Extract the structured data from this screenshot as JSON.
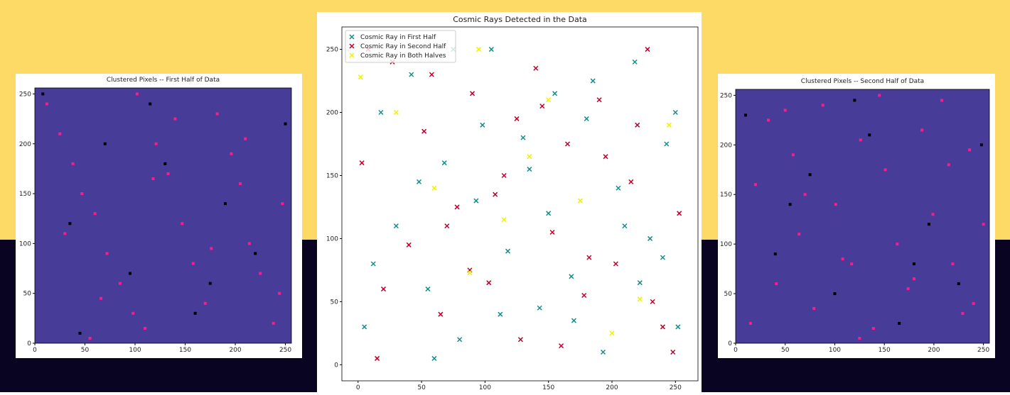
{
  "chart_data": [
    {
      "type": "scatter",
      "title": "Clustered Pixels -- First Half of Data",
      "facecolor": "#473c97",
      "marker": "square",
      "xlim": [
        0,
        256
      ],
      "ylim": [
        0,
        256
      ],
      "xticks": [
        0,
        50,
        100,
        150,
        200,
        250
      ],
      "yticks": [
        0,
        50,
        100,
        150,
        200,
        250
      ],
      "series": [
        {
          "color": "#ff1a8c",
          "x": [
            12,
            25,
            38,
            47,
            60,
            72,
            85,
            98,
            110,
            121,
            133,
            147,
            158,
            170,
            182,
            196,
            205,
            214,
            225,
            238,
            247,
            30,
            66,
            102,
            140,
            176,
            210,
            244,
            55,
            118
          ],
          "values": [
            240,
            210,
            180,
            150,
            130,
            90,
            60,
            30,
            15,
            200,
            170,
            120,
            80,
            40,
            230,
            190,
            160,
            100,
            70,
            20,
            140,
            110,
            45,
            250,
            225,
            95,
            205,
            50,
            5,
            165
          ]
        },
        {
          "color": "#000000",
          "x": [
            8,
            35,
            70,
            95,
            130,
            160,
            190,
            220,
            250,
            45,
            115,
            175
          ],
          "values": [
            250,
            120,
            200,
            70,
            180,
            30,
            140,
            90,
            220,
            10,
            240,
            60
          ]
        }
      ]
    },
    {
      "type": "scatter",
      "title": "Cosmic Rays Detected in the Data",
      "facecolor": "#ffffff",
      "marker": "x",
      "legend": "upper left",
      "xlim": [
        -12.75,
        267.75
      ],
      "ylim": [
        -12.75,
        267.75
      ],
      "xticks": [
        0,
        50,
        100,
        150,
        200,
        250
      ],
      "yticks": [
        0,
        50,
        100,
        150,
        200,
        250
      ],
      "series": [
        {
          "name": "Cosmic Ray in First Half",
          "color": "#138f8a",
          "x": [
            5,
            18,
            30,
            42,
            55,
            68,
            80,
            93,
            105,
            118,
            130,
            143,
            155,
            168,
            180,
            193,
            205,
            218,
            230,
            243,
            252,
            12,
            48,
            75,
            112,
            150,
            185,
            222,
            250,
            60,
            98,
            135,
            170,
            210,
            240
          ],
          "values": [
            30,
            200,
            110,
            230,
            60,
            160,
            20,
            130,
            250,
            90,
            180,
            45,
            215,
            70,
            195,
            10,
            140,
            240,
            100,
            175,
            30,
            80,
            145,
            250,
            40,
            120,
            225,
            65,
            200,
            5,
            190,
            155,
            35,
            110,
            85
          ]
        },
        {
          "name": "Cosmic Ray in Second Half",
          "color": "#c0002a",
          "x": [
            3,
            15,
            27,
            40,
            52,
            65,
            78,
            90,
            103,
            115,
            128,
            140,
            153,
            165,
            178,
            190,
            203,
            215,
            228,
            240,
            253,
            20,
            58,
            88,
            125,
            160,
            195,
            232,
            8,
            70,
            108,
            145,
            182,
            220,
            248
          ],
          "values": [
            160,
            5,
            240,
            95,
            185,
            40,
            125,
            215,
            65,
            150,
            20,
            235,
            105,
            175,
            55,
            210,
            80,
            145,
            250,
            30,
            120,
            60,
            230,
            75,
            195,
            15,
            165,
            50,
            250,
            110,
            135,
            205,
            85,
            190,
            10
          ]
        },
        {
          "name": "Cosmic Ray in Both Halves",
          "color": "#f0f000",
          "x": [
            2,
            30,
            60,
            88,
            115,
            150,
            175,
            200,
            222,
            245,
            95,
            135
          ],
          "values": [
            228,
            200,
            140,
            73,
            115,
            210,
            130,
            25,
            52,
            190,
            250,
            165
          ]
        }
      ]
    },
    {
      "type": "scatter",
      "title": "Clustered Pixels -- Second Half of Data",
      "facecolor": "#473c97",
      "marker": "square",
      "xlim": [
        0,
        256
      ],
      "ylim": [
        0,
        256
      ],
      "xticks": [
        0,
        50,
        100,
        150,
        200,
        250
      ],
      "yticks": [
        0,
        50,
        100,
        150,
        200,
        250
      ],
      "series": [
        {
          "color": "#ff1a8c",
          "x": [
            20,
            33,
            41,
            58,
            64,
            79,
            88,
            101,
            117,
            126,
            139,
            151,
            163,
            174,
            188,
            199,
            208,
            219,
            229,
            236,
            250,
            15,
            70,
            108,
            145,
            180,
            215,
            240,
            50,
            125
          ],
          "values": [
            160,
            225,
            60,
            190,
            110,
            35,
            240,
            140,
            80,
            205,
            15,
            175,
            100,
            55,
            215,
            130,
            245,
            80,
            30,
            195,
            120,
            20,
            150,
            85,
            250,
            65,
            180,
            40,
            235,
            5
          ]
        },
        {
          "color": "#000000",
          "x": [
            10,
            40,
            75,
            100,
            135,
            165,
            195,
            225,
            248,
            55,
            120,
            180
          ],
          "values": [
            230,
            90,
            170,
            50,
            210,
            20,
            120,
            60,
            200,
            140,
            245,
            80
          ]
        }
      ]
    }
  ]
}
